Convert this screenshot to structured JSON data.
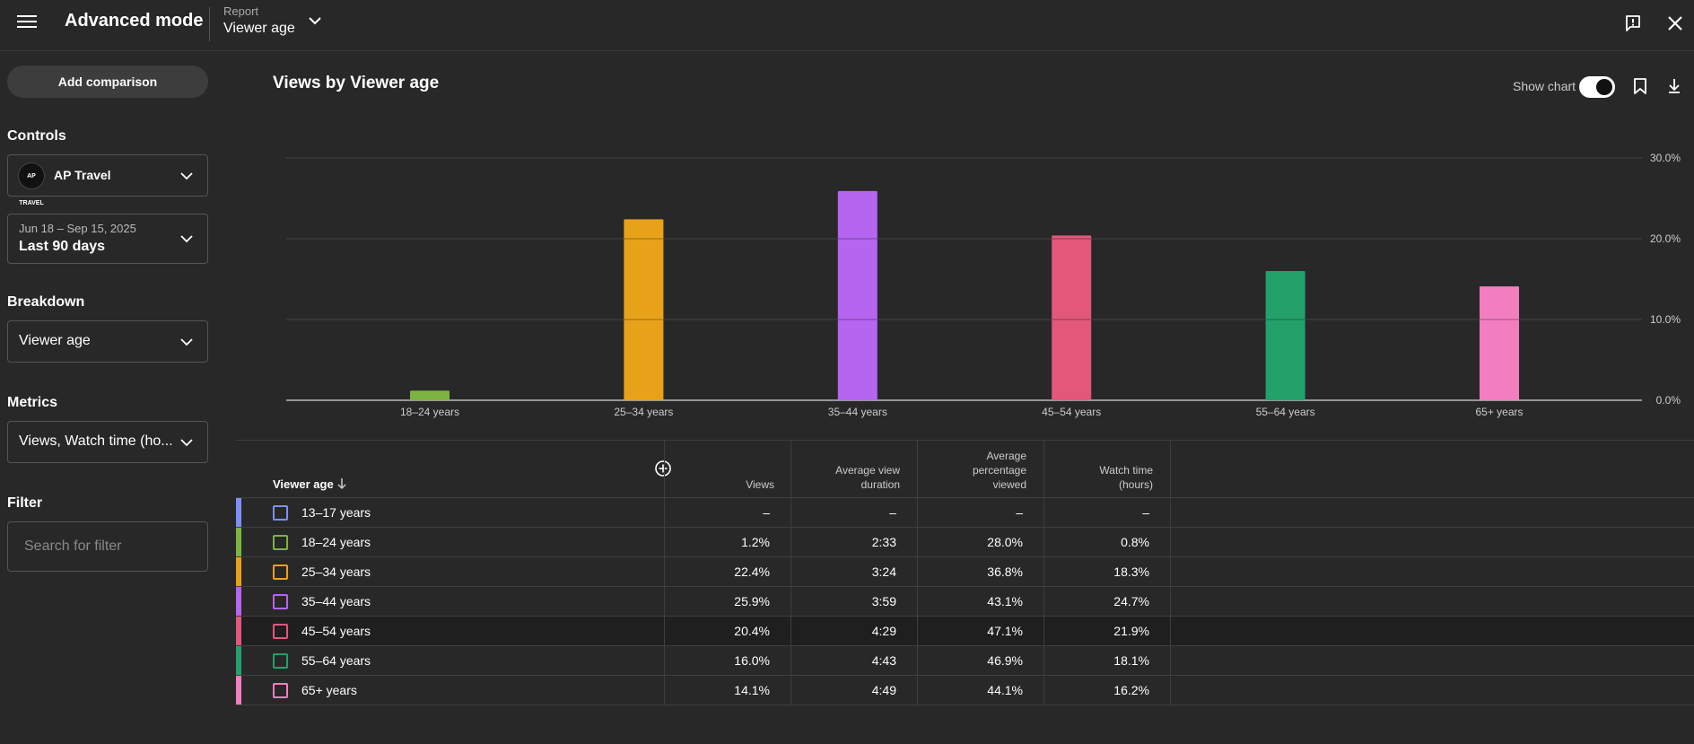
{
  "header": {
    "title": "Advanced mode",
    "report_label": "Report",
    "report_value": "Viewer age"
  },
  "sidebar": {
    "add_comparison": "Add comparison",
    "controls_heading": "Controls",
    "channel": {
      "name": "AP Travel",
      "avatar_text": "AP TRAVEL"
    },
    "date": {
      "range": "Jun 18 – Sep 15, 2025",
      "preset": "Last 90 days"
    },
    "breakdown_heading": "Breakdown",
    "breakdown_value": "Viewer age",
    "metrics_heading": "Metrics",
    "metrics_value": "Views, Watch time (ho...",
    "filter_heading": "Filter",
    "filter_placeholder": "Search for filter"
  },
  "main": {
    "title": "Views by Viewer age",
    "show_chart_label": "Show chart",
    "show_chart_on": true
  },
  "chart_data": {
    "type": "bar",
    "title": "Views by Viewer age",
    "categories": [
      "18–24 years",
      "25–34 years",
      "35–44 years",
      "45–54 years",
      "55–64 years",
      "65+ years"
    ],
    "values": [
      1.2,
      22.4,
      25.9,
      20.4,
      16.0,
      14.1
    ],
    "colors": [
      "#7cb342",
      "#e8a21a",
      "#b565f0",
      "#e2577a",
      "#24a06b",
      "#f27ec0"
    ],
    "ylim": [
      0,
      30
    ],
    "yticks": [
      "0.0%",
      "10.0%",
      "20.0%",
      "30.0%"
    ],
    "ytick_values": [
      0,
      10,
      20,
      30
    ],
    "grid": true
  },
  "table": {
    "headers": {
      "age": "Viewer age",
      "views": "Views",
      "avd": [
        "Average view",
        "duration"
      ],
      "apv": [
        "Average",
        "percentage",
        "viewed"
      ],
      "wt": [
        "Watch time",
        "(hours)"
      ]
    },
    "rows": [
      {
        "label": "13–17 years",
        "color": "#7e8ff7",
        "views": "–",
        "avd": "–",
        "apv": "–",
        "wt": "–"
      },
      {
        "label": "18–24 years",
        "color": "#7cb342",
        "views": "1.2%",
        "avd": "2:33",
        "apv": "28.0%",
        "wt": "0.8%"
      },
      {
        "label": "25–34 years",
        "color": "#e8a21a",
        "views": "22.4%",
        "avd": "3:24",
        "apv": "36.8%",
        "wt": "18.3%"
      },
      {
        "label": "35–44 years",
        "color": "#b565f0",
        "views": "25.9%",
        "avd": "3:59",
        "apv": "43.1%",
        "wt": "24.7%"
      },
      {
        "label": "45–54 years",
        "color": "#e2577a",
        "views": "20.4%",
        "avd": "4:29",
        "apv": "47.1%",
        "wt": "21.9%"
      },
      {
        "label": "55–64 years",
        "color": "#24a06b",
        "views": "16.0%",
        "avd": "4:43",
        "apv": "46.9%",
        "wt": "18.1%"
      },
      {
        "label": "65+ years",
        "color": "#f27ec0",
        "views": "14.1%",
        "avd": "4:49",
        "apv": "44.1%",
        "wt": "16.2%"
      }
    ]
  }
}
